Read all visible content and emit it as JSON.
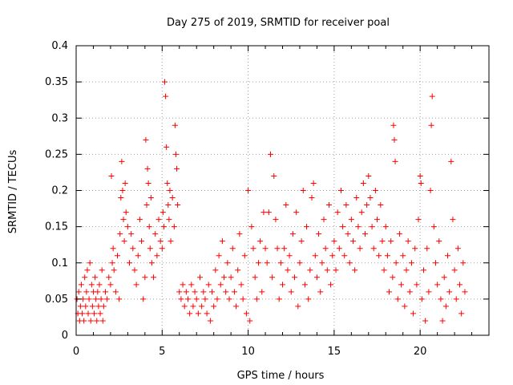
{
  "chart_data": {
    "type": "scatter",
    "title": "Day 275 of 2019, SRMTID for receiver poal",
    "xlabel": "GPS time / hours",
    "ylabel": "SRMTID / TECUs",
    "xlim": [
      0,
      24
    ],
    "ylim": [
      0,
      0.4
    ],
    "xticks": [
      0,
      5,
      10,
      15,
      20
    ],
    "xtick_labels": [
      "0",
      "5",
      "10",
      "15",
      "20"
    ],
    "yticks": [
      0,
      0.05,
      0.1,
      0.15,
      0.2,
      0.25,
      0.3,
      0.35,
      0.4
    ],
    "ytick_labels": [
      "0",
      "0.05",
      "0.1",
      "0.15",
      "0.2",
      "0.25",
      "0.3",
      "0.35",
      "0.4"
    ],
    "grid": true,
    "legend": "none",
    "marker": "+",
    "marker_color": "#ff0000",
    "grid_color": "#a0a0a0",
    "series": [
      {
        "name": "SRMTID",
        "points": [
          [
            0.05,
            0.05
          ],
          [
            0.1,
            0.03
          ],
          [
            0.15,
            0.06
          ],
          [
            0.2,
            0.02
          ],
          [
            0.25,
            0.04
          ],
          [
            0.3,
            0.07
          ],
          [
            0.35,
            0.03
          ],
          [
            0.4,
            0.05
          ],
          [
            0.45,
            0.02
          ],
          [
            0.5,
            0.08
          ],
          [
            0.55,
            0.04
          ],
          [
            0.6,
            0.06
          ],
          [
            0.65,
            0.09
          ],
          [
            0.7,
            0.03
          ],
          [
            0.75,
            0.05
          ],
          [
            0.8,
            0.1
          ],
          [
            0.85,
            0.02
          ],
          [
            0.9,
            0.07
          ],
          [
            0.95,
            0.04
          ],
          [
            1.0,
            0.06
          ],
          [
            1.05,
            0.03
          ],
          [
            1.1,
            0.08
          ],
          [
            1.15,
            0.05
          ],
          [
            1.2,
            0.02
          ],
          [
            1.25,
            0.06
          ],
          [
            1.3,
            0.04
          ],
          [
            1.35,
            0.07
          ],
          [
            1.4,
            0.03
          ],
          [
            1.45,
            0.05
          ],
          [
            1.5,
            0.09
          ],
          [
            1.55,
            0.02
          ],
          [
            1.6,
            0.04
          ],
          [
            1.7,
            0.06
          ],
          [
            1.8,
            0.05
          ],
          [
            1.9,
            0.08
          ],
          [
            2.0,
            0.07
          ],
          [
            2.05,
            0.22
          ],
          [
            2.1,
            0.1
          ],
          [
            2.15,
            0.12
          ],
          [
            2.2,
            0.09
          ],
          [
            2.3,
            0.06
          ],
          [
            2.4,
            0.11
          ],
          [
            2.5,
            0.05
          ],
          [
            2.55,
            0.14
          ],
          [
            2.6,
            0.19
          ],
          [
            2.65,
            0.24
          ],
          [
            2.7,
            0.2
          ],
          [
            2.75,
            0.16
          ],
          [
            2.8,
            0.13
          ],
          [
            2.85,
            0.21
          ],
          [
            2.9,
            0.17
          ],
          [
            3.0,
            0.15
          ],
          [
            3.1,
            0.1
          ],
          [
            3.2,
            0.14
          ],
          [
            3.3,
            0.12
          ],
          [
            3.4,
            0.09
          ],
          [
            3.5,
            0.07
          ],
          [
            3.6,
            0.11
          ],
          [
            3.7,
            0.16
          ],
          [
            3.8,
            0.13
          ],
          [
            3.9,
            0.05
          ],
          [
            4.0,
            0.08
          ],
          [
            4.05,
            0.27
          ],
          [
            4.1,
            0.18
          ],
          [
            4.15,
            0.23
          ],
          [
            4.2,
            0.21
          ],
          [
            4.25,
            0.15
          ],
          [
            4.3,
            0.12
          ],
          [
            4.35,
            0.19
          ],
          [
            4.4,
            0.1
          ],
          [
            4.5,
            0.08
          ],
          [
            4.6,
            0.14
          ],
          [
            4.7,
            0.11
          ],
          [
            4.8,
            0.16
          ],
          [
            4.9,
            0.13
          ],
          [
            5.0,
            0.12
          ],
          [
            5.05,
            0.17
          ],
          [
            5.1,
            0.15
          ],
          [
            5.15,
            0.35
          ],
          [
            5.2,
            0.33
          ],
          [
            5.25,
            0.26
          ],
          [
            5.3,
            0.21
          ],
          [
            5.35,
            0.18
          ],
          [
            5.4,
            0.16
          ],
          [
            5.45,
            0.2
          ],
          [
            5.5,
            0.13
          ],
          [
            5.6,
            0.19
          ],
          [
            5.7,
            0.15
          ],
          [
            5.75,
            0.29
          ],
          [
            5.8,
            0.25
          ],
          [
            5.85,
            0.23
          ],
          [
            5.9,
            0.18
          ],
          [
            6.0,
            0.06
          ],
          [
            6.1,
            0.05
          ],
          [
            6.2,
            0.07
          ],
          [
            6.3,
            0.04
          ],
          [
            6.4,
            0.06
          ],
          [
            6.5,
            0.05
          ],
          [
            6.6,
            0.03
          ],
          [
            6.7,
            0.07
          ],
          [
            6.8,
            0.04
          ],
          [
            6.9,
            0.06
          ],
          [
            7.0,
            0.05
          ],
          [
            7.1,
            0.03
          ],
          [
            7.2,
            0.08
          ],
          [
            7.3,
            0.04
          ],
          [
            7.4,
            0.06
          ],
          [
            7.5,
            0.05
          ],
          [
            7.6,
            0.03
          ],
          [
            7.7,
            0.07
          ],
          [
            7.8,
            0.02
          ],
          [
            7.9,
            0.06
          ],
          [
            8.0,
            0.04
          ],
          [
            8.1,
            0.09
          ],
          [
            8.2,
            0.05
          ],
          [
            8.3,
            0.11
          ],
          [
            8.4,
            0.07
          ],
          [
            8.5,
            0.13
          ],
          [
            8.6,
            0.08
          ],
          [
            8.7,
            0.06
          ],
          [
            8.8,
            0.1
          ],
          [
            8.9,
            0.05
          ],
          [
            9.0,
            0.08
          ],
          [
            9.1,
            0.12
          ],
          [
            9.2,
            0.06
          ],
          [
            9.3,
            0.04
          ],
          [
            9.4,
            0.09
          ],
          [
            9.5,
            0.14
          ],
          [
            9.6,
            0.07
          ],
          [
            9.7,
            0.05
          ],
          [
            9.8,
            0.11
          ],
          [
            9.9,
            0.03
          ],
          [
            10.0,
            0.2
          ],
          [
            10.1,
            0.02
          ],
          [
            10.2,
            0.15
          ],
          [
            10.3,
            0.12
          ],
          [
            10.4,
            0.08
          ],
          [
            10.5,
            0.05
          ],
          [
            10.6,
            0.1
          ],
          [
            10.7,
            0.13
          ],
          [
            10.8,
            0.06
          ],
          [
            10.9,
            0.17
          ],
          [
            11.0,
            0.12
          ],
          [
            11.1,
            0.1
          ],
          [
            11.2,
            0.17
          ],
          [
            11.3,
            0.25
          ],
          [
            11.4,
            0.08
          ],
          [
            11.5,
            0.22
          ],
          [
            11.6,
            0.16
          ],
          [
            11.7,
            0.12
          ],
          [
            11.8,
            0.05
          ],
          [
            11.9,
            0.1
          ],
          [
            12.0,
            0.07
          ],
          [
            12.1,
            0.12
          ],
          [
            12.2,
            0.18
          ],
          [
            12.3,
            0.09
          ],
          [
            12.4,
            0.11
          ],
          [
            12.5,
            0.06
          ],
          [
            12.6,
            0.14
          ],
          [
            12.7,
            0.08
          ],
          [
            12.8,
            0.17
          ],
          [
            12.9,
            0.04
          ],
          [
            13.0,
            0.1
          ],
          [
            13.1,
            0.13
          ],
          [
            13.2,
            0.2
          ],
          [
            13.3,
            0.07
          ],
          [
            13.4,
            0.15
          ],
          [
            13.5,
            0.05
          ],
          [
            13.6,
            0.09
          ],
          [
            13.7,
            0.19
          ],
          [
            13.8,
            0.21
          ],
          [
            13.9,
            0.11
          ],
          [
            14.0,
            0.08
          ],
          [
            14.1,
            0.14
          ],
          [
            14.2,
            0.06
          ],
          [
            14.3,
            0.1
          ],
          [
            14.4,
            0.16
          ],
          [
            14.5,
            0.12
          ],
          [
            14.6,
            0.09
          ],
          [
            14.7,
            0.18
          ],
          [
            14.8,
            0.07
          ],
          [
            14.9,
            0.11
          ],
          [
            15.0,
            0.13
          ],
          [
            15.1,
            0.09
          ],
          [
            15.2,
            0.17
          ],
          [
            15.3,
            0.12
          ],
          [
            15.4,
            0.2
          ],
          [
            15.5,
            0.15
          ],
          [
            15.6,
            0.11
          ],
          [
            15.7,
            0.18
          ],
          [
            15.8,
            0.14
          ],
          [
            15.9,
            0.1
          ],
          [
            16.0,
            0.16
          ],
          [
            16.1,
            0.13
          ],
          [
            16.2,
            0.09
          ],
          [
            16.3,
            0.19
          ],
          [
            16.4,
            0.15
          ],
          [
            16.5,
            0.12
          ],
          [
            16.6,
            0.17
          ],
          [
            16.7,
            0.21
          ],
          [
            16.8,
            0.14
          ],
          [
            16.9,
            0.18
          ],
          [
            17.0,
            0.22
          ],
          [
            17.1,
            0.19
          ],
          [
            17.2,
            0.15
          ],
          [
            17.3,
            0.12
          ],
          [
            17.4,
            0.2
          ],
          [
            17.5,
            0.16
          ],
          [
            17.6,
            0.11
          ],
          [
            17.7,
            0.18
          ],
          [
            17.8,
            0.13
          ],
          [
            17.9,
            0.09
          ],
          [
            18.0,
            0.15
          ],
          [
            18.1,
            0.11
          ],
          [
            18.2,
            0.06
          ],
          [
            18.3,
            0.13
          ],
          [
            18.4,
            0.08
          ],
          [
            18.45,
            0.29
          ],
          [
            18.5,
            0.27
          ],
          [
            18.55,
            0.24
          ],
          [
            18.6,
            0.1
          ],
          [
            18.7,
            0.05
          ],
          [
            18.8,
            0.14
          ],
          [
            18.9,
            0.07
          ],
          [
            19.0,
            0.11
          ],
          [
            19.1,
            0.04
          ],
          [
            19.2,
            0.09
          ],
          [
            19.3,
            0.13
          ],
          [
            19.4,
            0.06
          ],
          [
            19.5,
            0.1
          ],
          [
            19.6,
            0.03
          ],
          [
            19.7,
            0.12
          ],
          [
            19.8,
            0.07
          ],
          [
            19.9,
            0.16
          ],
          [
            20.0,
            0.22
          ],
          [
            20.05,
            0.21
          ],
          [
            20.1,
            0.05
          ],
          [
            20.2,
            0.09
          ],
          [
            20.3,
            0.02
          ],
          [
            20.4,
            0.12
          ],
          [
            20.5,
            0.06
          ],
          [
            20.6,
            0.2
          ],
          [
            20.65,
            0.29
          ],
          [
            20.7,
            0.33
          ],
          [
            20.8,
            0.15
          ],
          [
            20.9,
            0.1
          ],
          [
            21.0,
            0.07
          ],
          [
            21.1,
            0.13
          ],
          [
            21.2,
            0.05
          ],
          [
            21.3,
            0.02
          ],
          [
            21.4,
            0.08
          ],
          [
            21.5,
            0.04
          ],
          [
            21.6,
            0.11
          ],
          [
            21.7,
            0.06
          ],
          [
            21.8,
            0.24
          ],
          [
            21.9,
            0.16
          ],
          [
            22.0,
            0.09
          ],
          [
            22.1,
            0.05
          ],
          [
            22.2,
            0.12
          ],
          [
            22.3,
            0.07
          ],
          [
            22.4,
            0.03
          ],
          [
            22.5,
            0.1
          ],
          [
            22.6,
            0.06
          ]
        ]
      }
    ]
  }
}
